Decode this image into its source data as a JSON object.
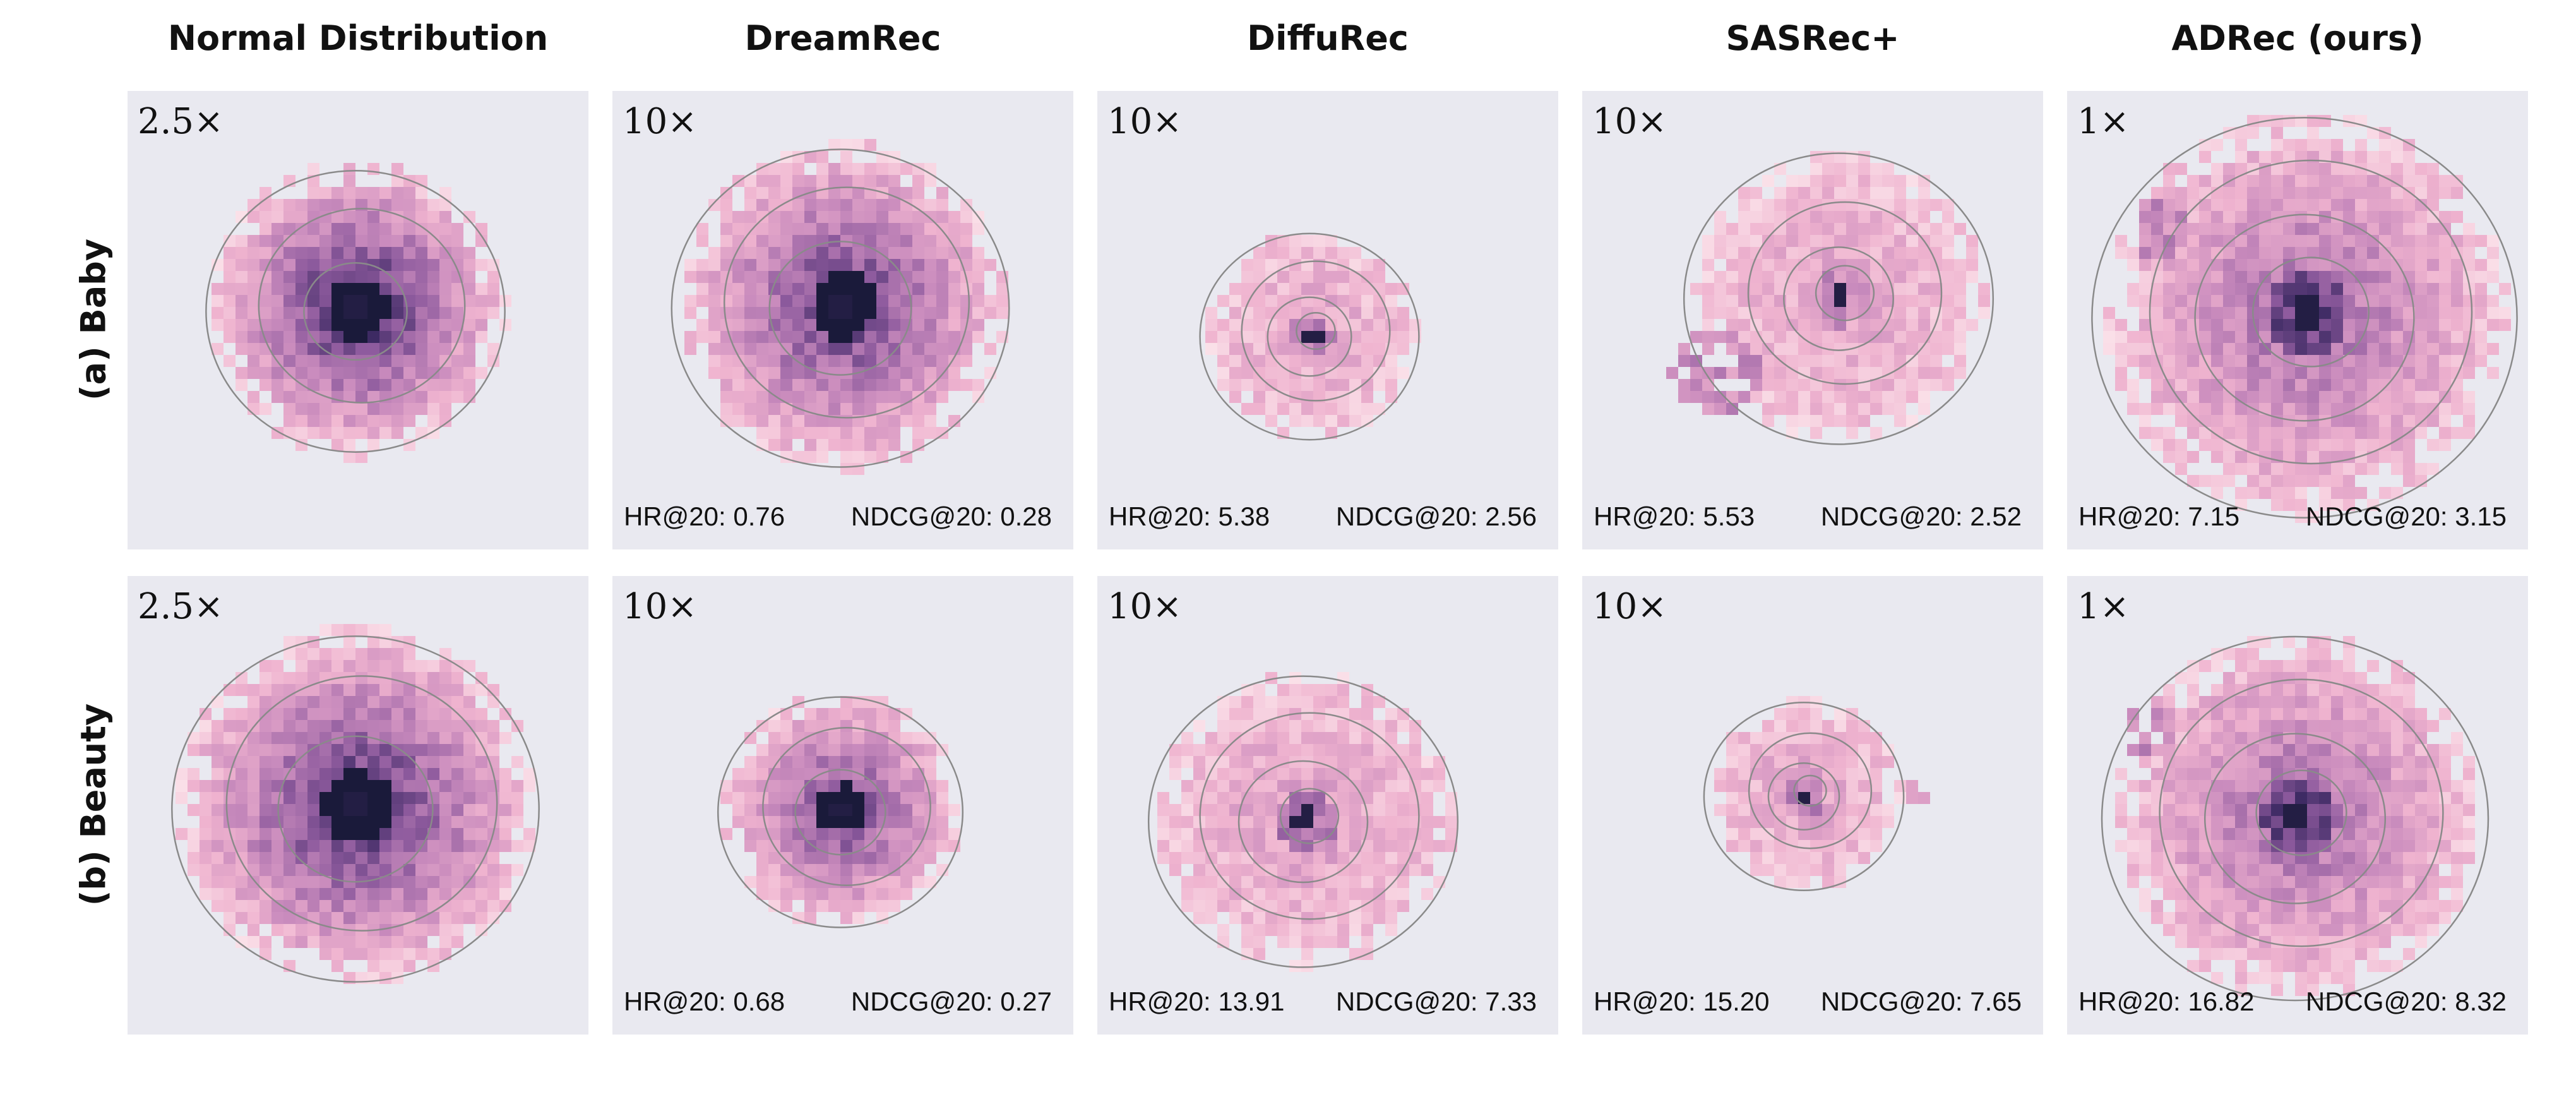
{
  "columns": [
    "Normal Distribution",
    "DreamRec",
    "DiffuRec",
    "SASRec+",
    "ADRec (ours)"
  ],
  "rows": [
    "(a) Baby",
    "(b) Beauty"
  ],
  "chart_data": {
    "type": "heatmap",
    "description_note": "",
    "panels": [
      {
        "row": "(a) Baby",
        "column": "Normal Distribution",
        "scale": "2.5×",
        "hr_label": "",
        "ndcg_label": "",
        "hr": null,
        "ndcg": null
      },
      {
        "row": "(a) Baby",
        "column": "DreamRec",
        "scale": "10×",
        "hr_label": "HR@20: 0.76",
        "ndcg_label": "NDCG@20: 0.28",
        "hr": 0.76,
        "ndcg": 0.28
      },
      {
        "row": "(a) Baby",
        "column": "DiffuRec",
        "scale": "10×",
        "hr_label": "HR@20: 5.38",
        "ndcg_label": "NDCG@20: 2.56",
        "hr": 5.38,
        "ndcg": 2.56
      },
      {
        "row": "(a) Baby",
        "column": "SASRec+",
        "scale": "10×",
        "hr_label": "HR@20: 5.53",
        "ndcg_label": "NDCG@20: 2.52",
        "hr": 5.53,
        "ndcg": 2.52
      },
      {
        "row": "(a) Baby",
        "column": "ADRec (ours)",
        "scale": "1×",
        "hr_label": "HR@20: 7.15",
        "ndcg_label": "NDCG@20: 3.15",
        "hr": 7.15,
        "ndcg": 3.15
      },
      {
        "row": "(b) Beauty",
        "column": "Normal Distribution",
        "scale": "2.5×",
        "hr_label": "",
        "ndcg_label": "",
        "hr": null,
        "ndcg": null
      },
      {
        "row": "(b) Beauty",
        "column": "DreamRec",
        "scale": "10×",
        "hr_label": "HR@20: 0.68",
        "ndcg_label": "NDCG@20: 0.27",
        "hr": 0.68,
        "ndcg": 0.27
      },
      {
        "row": "(b) Beauty",
        "column": "DiffuRec",
        "scale": "10×",
        "hr_label": "HR@20: 13.91",
        "ndcg_label": "NDCG@20: 7.33",
        "hr": 13.91,
        "ndcg": 7.33
      },
      {
        "row": "(b) Beauty",
        "column": "SASRec+",
        "scale": "10×",
        "hr_label": "HR@20: 15.20",
        "ndcg_label": "NDCG@20: 7.65",
        "hr": 15.2,
        "ndcg": 7.65
      },
      {
        "row": "(b) Beauty",
        "column": "ADRec (ours)",
        "scale": "1×",
        "hr_label": "HR@20: 16.82",
        "ndcg_label": "NDCG@20: 8.32",
        "hr": 16.82,
        "ndcg": 8.32
      }
    ],
    "grid": false,
    "legend": "none",
    "colormap": [
      "#fbe3ea",
      "#efb3cf",
      "#c98bbd",
      "#8d5a9d",
      "#3d2a63",
      "#1a1a3a"
    ]
  }
}
